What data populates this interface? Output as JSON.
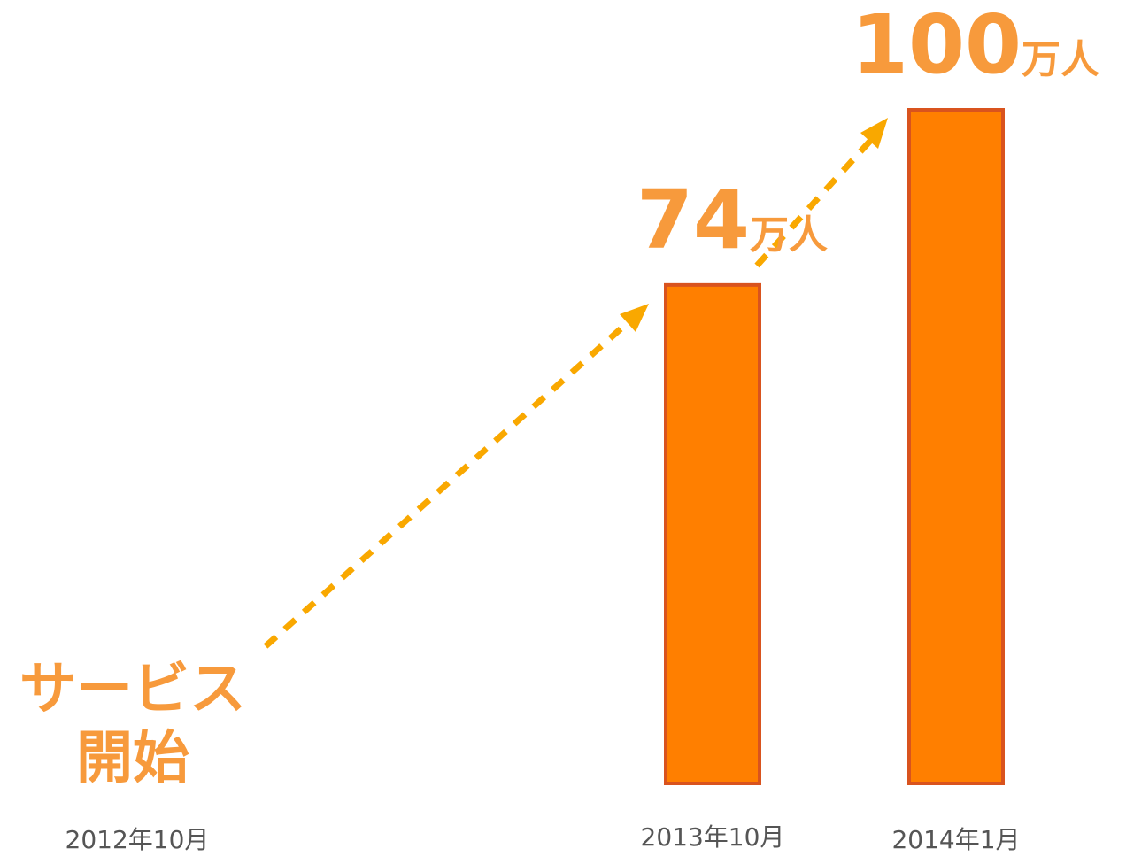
{
  "chart_data": {
    "type": "bar",
    "categories": [
      "2012年10月",
      "2013年10月",
      "2014年1月"
    ],
    "values": [
      null,
      74,
      100
    ],
    "value_labels": [
      null,
      "74万人",
      "100万人"
    ],
    "color": "#ff7f00",
    "ylim": [
      0,
      100
    ],
    "annotations": [
      "サービス",
      "開始"
    ]
  }
}
